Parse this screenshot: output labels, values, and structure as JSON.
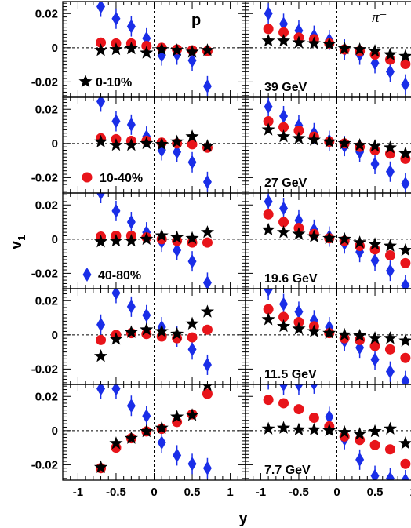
{
  "chart_data": {
    "type": "scatter",
    "xlabel": "y",
    "ylabel": "v1",
    "ylabel_main": "v",
    "ylabel_sub": "1",
    "xlim": [
      -1.2,
      1.2
    ],
    "ylim": [
      -0.029,
      0.027
    ],
    "x_ticks": [
      -1,
      -0.5,
      0,
      0.5,
      1
    ],
    "x_tick_labels": [
      "-1",
      "-0.5",
      "0",
      "0.5",
      "1"
    ],
    "y_ticks": [
      0.02,
      0,
      -0.02
    ],
    "y_tick_labels": [
      "0.02",
      "0",
      "-0.02"
    ],
    "columns": [
      {
        "particle": "p"
      },
      {
        "particle": "π⁻"
      }
    ],
    "legend": [
      {
        "name": "0-10%",
        "marker": "star",
        "color": "#000000"
      },
      {
        "name": "10-40%",
        "marker": "circle",
        "color": "#e8141a"
      },
      {
        "name": "40-80%",
        "marker": "diamond",
        "color": "#1a2ee8"
      }
    ],
    "energies": [
      "39 GeV",
      "27 GeV",
      "19.6 GeV",
      "11.5 GeV",
      "7.7 GeV"
    ],
    "panels": [
      {
        "p": {
          "c0_10": {
            "x": [
              -0.7,
              -0.5,
              -0.3,
              -0.1,
              0.1,
              0.3,
              0.5,
              0.7
            ],
            "y": [
              -0.0015,
              -0.001,
              -0.0005,
              -0.003,
              -0.001,
              -0.0015,
              -0.0025,
              -0.0015
            ]
          },
          "c10_40": {
            "x": [
              -0.7,
              -0.5,
              -0.3,
              -0.1,
              0.1,
              0.3,
              0.5,
              0.7
            ],
            "y": [
              0.003,
              0.0025,
              0.0025,
              0.001,
              0.0,
              -0.001,
              -0.0015,
              -0.002
            ]
          },
          "c40_80": {
            "x": [
              -0.7,
              -0.5,
              -0.3,
              -0.1,
              0.1,
              0.3,
              0.5,
              0.7
            ],
            "y": [
              0.024,
              0.017,
              0.0125,
              0.0055,
              -0.0045,
              -0.004,
              -0.0075,
              -0.0225
            ]
          }
        },
        "pi": {
          "c0_10": {
            "x": [
              -0.9,
              -0.7,
              -0.5,
              -0.3,
              -0.1,
              0.1,
              0.3,
              0.5,
              0.7,
              0.9
            ],
            "y": [
              0.004,
              0.004,
              0.003,
              0.0025,
              0.002,
              -0.0005,
              -0.001,
              -0.002,
              -0.004,
              -0.005
            ]
          },
          "c10_40": {
            "x": [
              -0.9,
              -0.7,
              -0.5,
              -0.3,
              -0.1,
              0.1,
              0.3,
              0.5,
              0.7,
              0.9
            ],
            "y": [
              0.011,
              0.009,
              0.006,
              0.005,
              0.0025,
              -0.001,
              -0.002,
              -0.004,
              -0.007,
              -0.0095
            ]
          },
          "c40_80": {
            "x": [
              -0.9,
              -0.7,
              -0.5,
              -0.3,
              -0.1,
              0.1,
              0.3,
              0.5,
              0.7,
              0.9
            ],
            "y": [
              0.02,
              0.014,
              0.01,
              0.007,
              0.0045,
              -0.001,
              -0.004,
              -0.009,
              -0.014,
              -0.0215
            ]
          }
        }
      },
      {
        "p": {
          "c0_10": {
            "x": [
              -0.7,
              -0.5,
              -0.3,
              -0.1,
              0.1,
              0.3,
              0.5,
              0.7
            ],
            "y": [
              0.001,
              -0.001,
              -0.001,
              0.0,
              -0.0005,
              0.001,
              0.004,
              -0.0015
            ]
          },
          "c10_40": {
            "x": [
              -0.7,
              -0.5,
              -0.3,
              -0.1,
              0.1,
              0.3,
              0.5,
              0.7
            ],
            "y": [
              0.003,
              0.0025,
              0.0015,
              0.0015,
              0.0005,
              0.0,
              -0.0005,
              -0.0025
            ]
          },
          "c40_80": {
            "x": [
              -0.7,
              -0.5,
              -0.3,
              -0.1,
              0.1,
              0.3,
              0.5,
              0.7
            ],
            "y": [
              0.0245,
              0.013,
              0.011,
              0.004,
              -0.004,
              -0.005,
              -0.011,
              -0.0225
            ]
          }
        },
        "pi": {
          "c0_10": {
            "x": [
              -0.9,
              -0.7,
              -0.5,
              -0.3,
              -0.1,
              0.1,
              0.3,
              0.5,
              0.7,
              0.9
            ],
            "y": [
              0.008,
              0.004,
              0.003,
              0.002,
              0.001,
              0.0,
              -0.001,
              -0.0015,
              -0.0025,
              -0.006
            ]
          },
          "c10_40": {
            "x": [
              -0.9,
              -0.7,
              -0.5,
              -0.3,
              -0.1,
              0.1,
              0.3,
              0.5,
              0.7,
              0.9
            ],
            "y": [
              0.013,
              0.0095,
              0.0075,
              0.004,
              0.001,
              0.0,
              -0.002,
              -0.004,
              -0.006,
              -0.009
            ]
          },
          "c40_80": {
            "x": [
              -0.9,
              -0.7,
              -0.5,
              -0.3,
              -0.1,
              0.1,
              0.3,
              0.5,
              0.7,
              0.9
            ],
            "y": [
              0.0215,
              0.016,
              0.0105,
              0.006,
              0.0015,
              -0.0015,
              -0.005,
              -0.012,
              -0.0165,
              -0.0235
            ]
          }
        }
      },
      {
        "p": {
          "c0_10": {
            "x": [
              -0.7,
              -0.5,
              -0.3,
              -0.1,
              0.1,
              0.3,
              0.5,
              0.7
            ],
            "y": [
              -0.0015,
              -0.001,
              -0.001,
              0.0,
              0.002,
              0.001,
              0.0005,
              0.004
            ]
          },
          "c10_40": {
            "x": [
              -0.7,
              -0.5,
              -0.3,
              -0.1,
              0.1,
              0.3,
              0.5,
              0.7
            ],
            "y": [
              0.0015,
              0.002,
              0.002,
              0.001,
              0.0,
              -0.001,
              -0.002,
              -0.002
            ]
          },
          "c40_80": {
            "x": [
              -0.7,
              -0.5,
              -0.3,
              -0.1,
              0.1,
              0.3,
              0.5,
              0.7
            ],
            "y": [
              0.027,
              0.0165,
              0.01,
              0.004,
              -0.0015,
              -0.0065,
              -0.013,
              -0.0255
            ]
          }
        },
        "pi": {
          "c0_10": {
            "x": [
              -0.9,
              -0.7,
              -0.5,
              -0.3,
              -0.1,
              0.1,
              0.3,
              0.5,
              0.7,
              0.9
            ],
            "y": [
              0.0055,
              0.004,
              0.003,
              0.0015,
              0.0005,
              0.0,
              -0.002,
              -0.003,
              -0.004,
              -0.0065
            ]
          },
          "c10_40": {
            "x": [
              -0.9,
              -0.7,
              -0.5,
              -0.3,
              -0.1,
              0.1,
              0.3,
              0.5,
              0.7,
              0.9
            ],
            "y": [
              0.0145,
              0.01,
              0.0065,
              0.003,
              0.0005,
              -0.001,
              -0.004,
              -0.006,
              -0.0095,
              -0.014
            ]
          },
          "c40_80": {
            "x": [
              -0.9,
              -0.7,
              -0.5,
              -0.3,
              -0.1,
              0.1,
              0.3,
              0.5,
              0.7,
              0.9
            ],
            "y": [
              0.022,
              0.018,
              0.011,
              0.0055,
              0.0015,
              -0.0025,
              -0.0075,
              -0.0125,
              -0.0185,
              -0.027
            ]
          }
        }
      },
      {
        "p": {
          "c0_10": {
            "x": [
              -0.7,
              -0.5,
              -0.3,
              -0.1,
              0.1,
              0.3,
              0.5,
              0.7
            ],
            "y": [
              -0.0125,
              -0.0025,
              0.0015,
              0.003,
              0.002,
              0.0005,
              0.0065,
              0.0135
            ]
          },
          "c10_40": {
            "x": [
              -0.7,
              -0.5,
              -0.3,
              -0.1,
              0.1,
              0.3,
              0.5,
              0.7
            ],
            "y": [
              -0.003,
              0.0,
              0.001,
              0.0005,
              -0.001,
              -0.002,
              -0.0015,
              0.003
            ]
          },
          "c40_80": {
            "x": [
              -0.7,
              -0.5,
              -0.3,
              -0.1,
              0.1,
              0.3,
              0.5,
              0.7
            ],
            "y": [
              0.006,
              0.0245,
              0.0165,
              0.0115,
              0.0045,
              -0.001,
              -0.0085,
              -0.0175
            ]
          }
        },
        "pi": {
          "c0_10": {
            "x": [
              -0.9,
              -0.7,
              -0.5,
              -0.3,
              -0.1,
              0.1,
              0.3,
              0.5,
              0.7,
              0.9
            ],
            "y": [
              0.009,
              0.005,
              0.0035,
              0.002,
              0.001,
              0.0,
              -0.0005,
              -0.002,
              -0.002,
              -0.0035
            ]
          },
          "c10_40": {
            "x": [
              -0.9,
              -0.7,
              -0.5,
              -0.3,
              -0.1,
              0.1,
              0.3,
              0.5,
              0.7,
              0.9
            ],
            "y": [
              0.015,
              0.0105,
              0.0075,
              0.005,
              0.001,
              -0.002,
              -0.003,
              -0.0065,
              -0.0085,
              -0.0135
            ]
          },
          "c40_80": {
            "x": [
              -0.9,
              -0.7,
              -0.5,
              -0.3,
              -0.1,
              0.1,
              0.3,
              0.5,
              0.7,
              0.9
            ],
            "y": [
              0.0265,
              0.018,
              0.0135,
              0.0085,
              0.0045,
              -0.0035,
              -0.0075,
              -0.0145,
              -0.0215,
              -0.027
            ]
          }
        }
      },
      {
        "p": {
          "c0_10": {
            "x": [
              -0.7,
              -0.5,
              -0.3,
              -0.1,
              0.1,
              0.3,
              0.5,
              0.7
            ],
            "y": [
              -0.0215,
              -0.0075,
              -0.0045,
              -0.0005,
              0.0015,
              0.008,
              0.009,
              0.0265
            ]
          },
          "c10_40": {
            "x": [
              -0.7,
              -0.5,
              -0.3,
              -0.1,
              0.1,
              0.3,
              0.5,
              0.7
            ],
            "y": [
              -0.022,
              -0.01,
              -0.0045,
              -0.0005,
              0.001,
              0.005,
              0.0095,
              0.0215
            ]
          },
          "c40_80": {
            "x": [
              -0.7,
              -0.5,
              -0.3,
              -0.1,
              0.1,
              0.3,
              0.5,
              0.7
            ],
            "y": [
              0.0245,
              0.0245,
              0.0145,
              0.0085,
              -0.007,
              -0.0145,
              -0.0195,
              -0.022
            ]
          }
        },
        "pi": {
          "c0_10": {
            "x": [
              -0.9,
              -0.7,
              -0.5,
              -0.3,
              -0.1,
              0.1,
              0.3,
              0.5,
              0.7,
              0.9
            ],
            "y": [
              0.001,
              0.0015,
              0.0005,
              0.0005,
              0.0,
              -0.001,
              -0.002,
              -0.0005,
              0.001,
              -0.0075
            ]
          },
          "c10_40": {
            "x": [
              -0.9,
              -0.7,
              -0.5,
              -0.3,
              -0.1,
              0.1,
              0.3,
              0.5,
              0.7,
              0.9
            ],
            "y": [
              0.018,
              0.016,
              0.0125,
              0.0075,
              0.0025,
              -0.0035,
              -0.0055,
              -0.0085,
              -0.011,
              -0.0195
            ]
          },
          "c40_80": {
            "x": [
              -0.9,
              -0.7,
              -0.5,
              -0.3,
              -0.1,
              0.1,
              0.3,
              0.5,
              0.7,
              0.9
            ],
            "y": [
              0.03,
              0.027,
              0.027,
              0.0275,
              0.008,
              -0.005,
              -0.017,
              -0.0265,
              -0.028,
              -0.029
            ]
          }
        }
      }
    ]
  }
}
